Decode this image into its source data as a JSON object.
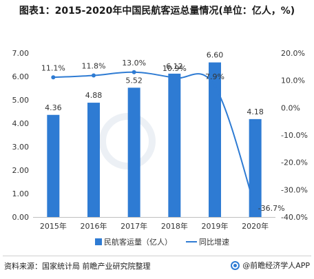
{
  "title": "图表1：2015-2020年中国民航客运总量情况(单位：亿人，%)",
  "footer": {
    "source": "资料来源：国家统计局 前瞻产业研究院整理",
    "brand": "@前瞻经济学人APP"
  },
  "chart_data": {
    "type": "bar",
    "categories": [
      "2015年",
      "2016年",
      "2017年",
      "2018年",
      "2019年",
      "2020年"
    ],
    "series": [
      {
        "name": "民航客运量（亿人）",
        "type": "bar",
        "axis": "left",
        "color": "#2e7bd3",
        "values": [
          4.36,
          4.88,
          5.52,
          6.12,
          6.6,
          4.18
        ],
        "labels": [
          "4.36",
          "4.88",
          "5.52",
          "6.12",
          "6.60",
          "4.18"
        ]
      },
      {
        "name": "同比增速",
        "type": "line",
        "axis": "right",
        "color": "#2e7bd3",
        "values": [
          11.1,
          11.8,
          13.0,
          10.9,
          7.9,
          -36.7
        ],
        "labels": [
          "11.1%",
          "11.8%",
          "13.0%",
          "10.9%",
          "7.9%",
          "-36.7%"
        ]
      }
    ],
    "y_left": {
      "ylim": [
        0,
        7
      ],
      "ticks": [
        0,
        1,
        2,
        3,
        4,
        5,
        6,
        7
      ],
      "tick_labels": [
        "0.00",
        "1.00",
        "2.00",
        "3.00",
        "4.00",
        "5.00",
        "6.00",
        "7.00"
      ]
    },
    "y_right": {
      "ylim": [
        -40,
        20
      ],
      "ticks": [
        -40,
        -30,
        -20,
        -10,
        0,
        10,
        20
      ],
      "tick_labels": [
        "-40.0%",
        "-30.0%",
        "-20.0%",
        "-10.0%",
        "0.0%",
        "10.0%",
        "20.0%"
      ]
    },
    "grid": false,
    "legend_position": "bottom"
  }
}
